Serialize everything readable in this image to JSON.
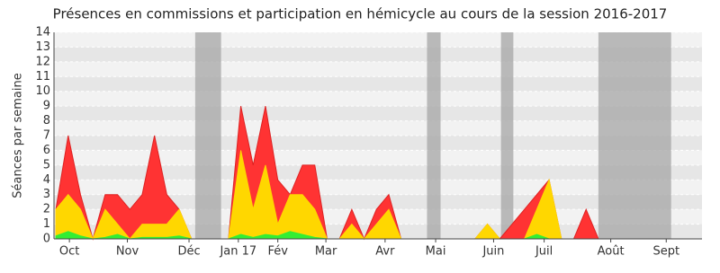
{
  "chart_data": {
    "type": "area",
    "title": "Présences en commissions et participation en hémicycle au cours de la session 2016-2017",
    "y_label": "Séances par semaine",
    "xlim": [
      -0.15,
      52.4
    ],
    "ylim": [
      0,
      14
    ],
    "yticks": [
      0,
      1,
      2,
      3,
      4,
      5,
      6,
      7,
      8,
      9,
      10,
      11,
      12,
      13,
      14
    ],
    "xticks": [
      {
        "value": 1.1,
        "label": "Oct"
      },
      {
        "value": 5.8,
        "label": "Nov"
      },
      {
        "value": 10.8,
        "label": "Déc"
      },
      {
        "value": 14.8,
        "label": "Jan 17"
      },
      {
        "value": 18,
        "label": "Fév"
      },
      {
        "value": 21.9,
        "label": "Mar"
      },
      {
        "value": 26.7,
        "label": "Avr"
      },
      {
        "value": 30.8,
        "label": "Mai"
      },
      {
        "value": 35.5,
        "label": "Juin"
      },
      {
        "value": 39.6,
        "label": "Juil"
      },
      {
        "value": 45,
        "label": "Août"
      },
      {
        "value": 49.5,
        "label": "Sept"
      }
    ],
    "shaded": [
      [
        11.3,
        13.4
      ],
      [
        30.1,
        31.2
      ],
      [
        36.1,
        37.1
      ],
      [
        44,
        49.9
      ]
    ],
    "series": [
      {
        "color": "#ff3333",
        "values": [
          2,
          7,
          3,
          0,
          3,
          3,
          2,
          3,
          7,
          3,
          2,
          0,
          0,
          0,
          0,
          9,
          5,
          9,
          4,
          3,
          5,
          5,
          0,
          0,
          2,
          0,
          2,
          3,
          0,
          0,
          0,
          0,
          0,
          0,
          0,
          1,
          0,
          1,
          2,
          3,
          4,
          0,
          0,
          2,
          0,
          0,
          0,
          0,
          0,
          0,
          0,
          0,
          0
        ]
      },
      {
        "color": "#ffd700",
        "values": [
          2,
          3,
          2,
          0,
          2,
          1,
          0,
          1,
          1,
          1,
          2,
          0,
          0,
          0,
          0,
          6,
          2,
          5,
          1,
          3,
          3,
          2,
          0,
          0,
          1,
          0,
          1,
          2,
          0,
          0,
          0,
          0,
          0,
          0,
          0,
          1,
          0,
          0,
          0,
          2,
          4,
          0,
          0,
          0,
          0,
          0,
          0,
          0,
          0,
          0,
          0,
          0,
          0
        ]
      },
      {
        "color": "#33ee33",
        "values": [
          0.2,
          0.5,
          0.2,
          0,
          0.1,
          0.3,
          0,
          0.1,
          0.1,
          0.1,
          0.2,
          0,
          0,
          0,
          0,
          0.3,
          0.1,
          0.3,
          0.2,
          0.5,
          0.3,
          0.1,
          0,
          0,
          0,
          0,
          0,
          0,
          0,
          0,
          0,
          0,
          0,
          0,
          0,
          0,
          0,
          0,
          0,
          0.3,
          0,
          0,
          0,
          0,
          0,
          0,
          0,
          0,
          0,
          0,
          0,
          0,
          0
        ]
      }
    ]
  }
}
